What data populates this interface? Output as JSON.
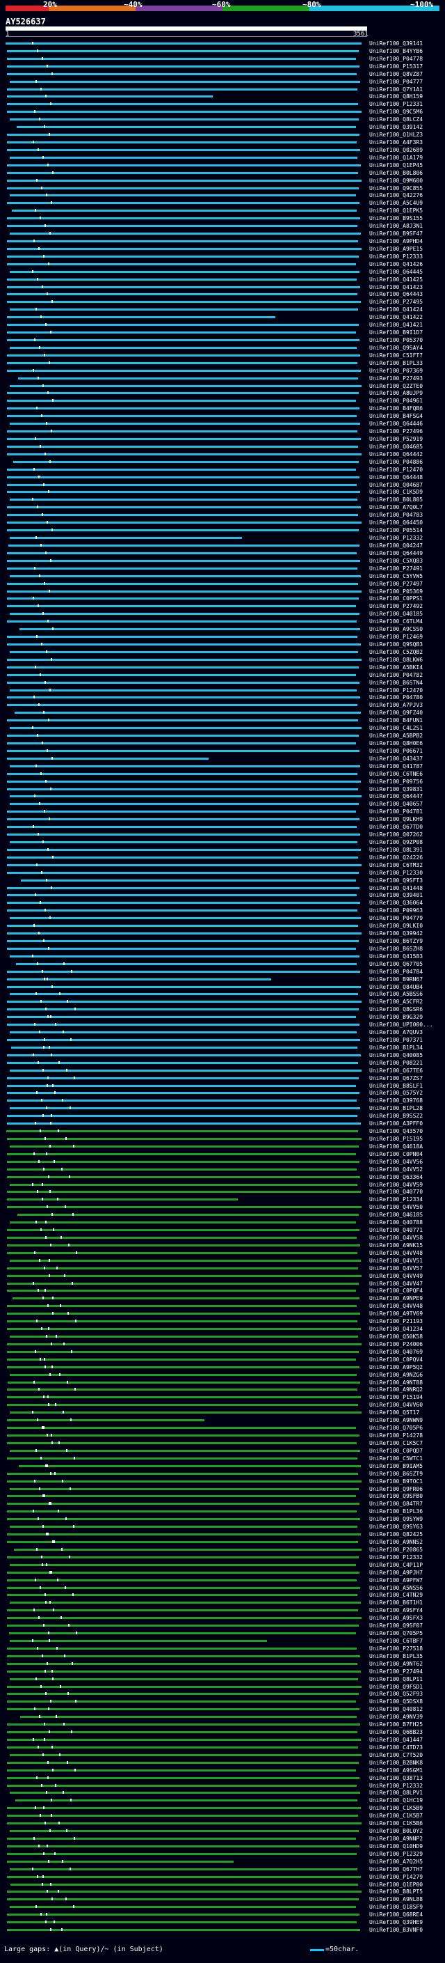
{
  "legend": {
    "labels": [
      "20%",
      "~40%",
      "~60%",
      "~80%",
      "~100%"
    ],
    "colors": [
      "#e0202a",
      "#e07020",
      "#8040a0",
      "#20a020",
      "#20c0e0"
    ]
  },
  "query": {
    "id": "AY526637",
    "start": "1",
    "end": "3561"
  },
  "hits": [
    {
      "name": "UniRef100_Q39141",
      "color": "#20c0e0"
    },
    {
      "name": "UniRef100_B4YYB6",
      "color": "#20c0e0"
    },
    {
      "name": "UniRef100_P04778",
      "color": "#20c0e0"
    },
    {
      "name": "UniRef100_P15317",
      "color": "#20c0e0"
    },
    {
      "name": "UniRef100_Q8VZ87",
      "color": "#20c0e0"
    },
    {
      "name": "UniRef100_P04777",
      "color": "#20c0e0"
    },
    {
      "name": "UniRef100_Q7Y1A1",
      "color": "#20c0e0"
    },
    {
      "name": "UniRef100_Q8H159",
      "color": "#20c0e0"
    },
    {
      "name": "UniRef100_P12331",
      "color": "#20c0e0"
    },
    {
      "name": "UniRef100_Q9C5M6",
      "color": "#20c0e0"
    },
    {
      "name": "UniRef100_Q8LCZ4",
      "color": "#20c0e0"
    },
    {
      "name": "UniRef100_Q39142",
      "color": "#20c0e0"
    },
    {
      "name": "UniRef100_Q1HLZ3",
      "color": "#20c0e0"
    },
    {
      "name": "UniRef100_A4F3R3",
      "color": "#20c0e0"
    },
    {
      "name": "UniRef100_Q02689",
      "color": "#20c0e0"
    },
    {
      "name": "UniRef100_Q1A179",
      "color": "#20c0e0"
    },
    {
      "name": "UniRef100_Q1EP45",
      "color": "#20c0e0"
    },
    {
      "name": "UniRef100_B0L806",
      "color": "#20c0e0"
    },
    {
      "name": "UniRef100_Q9M600",
      "color": "#20c0e0"
    },
    {
      "name": "UniRef100_Q9C855",
      "color": "#20c0e0"
    },
    {
      "name": "UniRef100_Q42276",
      "color": "#20c0e0"
    },
    {
      "name": "UniRef100_A5C4U9",
      "color": "#20c0e0"
    },
    {
      "name": "UniRef100_Q1EPK5",
      "color": "#20c0e0"
    },
    {
      "name": "UniRef100_B9S155",
      "color": "#20c0e0"
    },
    {
      "name": "UniRef100_A8J3N1",
      "color": "#20c0e0"
    },
    {
      "name": "UniRef100_B9SF47",
      "color": "#20c0e0"
    },
    {
      "name": "UniRef100_A9PHD4",
      "color": "#20c0e0"
    },
    {
      "name": "UniRef100_A9PE15",
      "color": "#20c0e0"
    },
    {
      "name": "UniRef100_P12333",
      "color": "#20c0e0"
    },
    {
      "name": "UniRef100_Q41426",
      "color": "#20c0e0"
    },
    {
      "name": "UniRef100_Q64445",
      "color": "#20c0e0"
    },
    {
      "name": "UniRef100_Q41425",
      "color": "#20c0e0"
    },
    {
      "name": "UniRef100_Q41423",
      "color": "#20c0e0"
    },
    {
      "name": "UniRef100_Q64443",
      "color": "#20c0e0"
    },
    {
      "name": "UniRef100_P27495",
      "color": "#20c0e0"
    },
    {
      "name": "UniRef100_Q41424",
      "color": "#20c0e0"
    },
    {
      "name": "UniRef100_Q41422",
      "color": "#20c0e0"
    },
    {
      "name": "UniRef100_Q41421",
      "color": "#20c0e0"
    },
    {
      "name": "UniRef100_B9I1D7",
      "color": "#20c0e0"
    },
    {
      "name": "UniRef100_P05370",
      "color": "#20c0e0"
    },
    {
      "name": "UniRef100_Q9SAY4",
      "color": "#20c0e0"
    },
    {
      "name": "UniRef100_C5IFT7",
      "color": "#20c0e0"
    },
    {
      "name": "UniRef100_B1PL33",
      "color": "#20c0e0"
    },
    {
      "name": "UniRef100_P07369",
      "color": "#20c0e0"
    },
    {
      "name": "UniRef100_P27493",
      "color": "#20c0e0"
    },
    {
      "name": "UniRef100_Q2ZTE0",
      "color": "#20c0e0"
    },
    {
      "name": "UniRef100_A8UJP9",
      "color": "#20c0e0"
    },
    {
      "name": "UniRef100_P04961",
      "color": "#20c0e0"
    },
    {
      "name": "UniRef100_B4FQB6",
      "color": "#20c0e0"
    },
    {
      "name": "UniRef100_B4FSG4",
      "color": "#20c0e0"
    },
    {
      "name": "UniRef100_Q64446",
      "color": "#20c0e0"
    },
    {
      "name": "UniRef100_P27496",
      "color": "#20c0e0"
    },
    {
      "name": "UniRef100_P52919",
      "color": "#20c0e0"
    },
    {
      "name": "UniRef100_Q04685",
      "color": "#20c0e0"
    },
    {
      "name": "UniRef100_Q64442",
      "color": "#20c0e0"
    },
    {
      "name": "UniRef100_P04886",
      "color": "#20c0e0"
    },
    {
      "name": "UniRef100_P12470",
      "color": "#20c0e0"
    },
    {
      "name": "UniRef100_Q64448",
      "color": "#20c0e0"
    },
    {
      "name": "UniRef100_Q04687",
      "color": "#20c0e0"
    },
    {
      "name": "UniRef100_C1K5D9",
      "color": "#20c0e0"
    },
    {
      "name": "UniRef100_B0L805",
      "color": "#20c0e0"
    },
    {
      "name": "UniRef100_A7Q0L7",
      "color": "#20c0e0"
    },
    {
      "name": "UniRef100_P04783",
      "color": "#20c0e0"
    },
    {
      "name": "UniRef100_Q64450",
      "color": "#20c0e0"
    },
    {
      "name": "UniRef100_P05514",
      "color": "#20c0e0"
    },
    {
      "name": "UniRef100_P12332",
      "color": "#20c0e0"
    },
    {
      "name": "UniRef100_Q04247",
      "color": "#20c0e0"
    },
    {
      "name": "UniRef100_Q64449",
      "color": "#20c0e0"
    },
    {
      "name": "UniRef100_C5XQ83",
      "color": "#20c0e0"
    },
    {
      "name": "UniRef100_P27491",
      "color": "#20c0e0"
    },
    {
      "name": "UniRef100_C5YVW5",
      "color": "#20c0e0"
    },
    {
      "name": "UniRef100_P27497",
      "color": "#20c0e0"
    },
    {
      "name": "UniRef100_P05369",
      "color": "#20c0e0"
    },
    {
      "name": "UniRef100_C0PPS1",
      "color": "#20c0e0"
    },
    {
      "name": "UniRef100_P27492",
      "color": "#20c0e0"
    },
    {
      "name": "UniRef100_Q40185",
      "color": "#20c0e0"
    },
    {
      "name": "UniRef100_C6TLM4",
      "color": "#20c0e0"
    },
    {
      "name": "UniRef100_A9CSS0",
      "color": "#20c0e0"
    },
    {
      "name": "UniRef100_P12469",
      "color": "#20c0e0"
    },
    {
      "name": "UniRef100_Q9SQB3",
      "color": "#20c0e0"
    },
    {
      "name": "UniRef100_C5ZQB2",
      "color": "#20c0e0"
    },
    {
      "name": "UniRef100_Q8LKW6",
      "color": "#20c0e0"
    },
    {
      "name": "UniRef100_A5BKI4",
      "color": "#20c0e0"
    },
    {
      "name": "UniRef100_P04782",
      "color": "#20c0e0"
    },
    {
      "name": "UniRef100_B6STN4",
      "color": "#20c0e0"
    },
    {
      "name": "UniRef100_P12470",
      "color": "#20c0e0"
    },
    {
      "name": "UniRef100_P04780",
      "color": "#20c0e0"
    },
    {
      "name": "UniRef100_A7PJV3",
      "color": "#20c0e0"
    },
    {
      "name": "UniRef100_Q9FZ40",
      "color": "#20c0e0"
    },
    {
      "name": "UniRef100_B4FUN1",
      "color": "#20c0e0"
    },
    {
      "name": "UniRef100_C4L2S1",
      "color": "#20c0e0"
    },
    {
      "name": "UniRef100_A5BPB2",
      "color": "#20c0e0"
    },
    {
      "name": "UniRef100_Q8H0E6",
      "color": "#20c0e0"
    },
    {
      "name": "UniRef100_P06671",
      "color": "#20c0e0"
    },
    {
      "name": "UniRef100_Q43437",
      "color": "#20c0e0"
    },
    {
      "name": "UniRef100_Q41787",
      "color": "#20c0e0"
    },
    {
      "name": "UniRef100_C6TNE6",
      "color": "#20c0e0"
    },
    {
      "name": "UniRef100_P09756",
      "color": "#20c0e0"
    },
    {
      "name": "UniRef100_Q39831",
      "color": "#20c0e0"
    },
    {
      "name": "UniRef100_Q64447",
      "color": "#20c0e0"
    },
    {
      "name": "UniRef100_Q40657",
      "color": "#20c0e0"
    },
    {
      "name": "UniRef100_P04781",
      "color": "#20c0e0"
    },
    {
      "name": "UniRef100_Q9LKH9",
      "color": "#20c0e0"
    },
    {
      "name": "UniRef100_Q67TD0",
      "color": "#20c0e0"
    },
    {
      "name": "UniRef100_Q07262",
      "color": "#20c0e0"
    },
    {
      "name": "UniRef100_Q9ZP08",
      "color": "#20c0e0"
    },
    {
      "name": "UniRef100_Q8L391",
      "color": "#20c0e0"
    },
    {
      "name": "UniRef100_Q24226",
      "color": "#20c0e0"
    },
    {
      "name": "UniRef100_C6TM32",
      "color": "#20c0e0"
    },
    {
      "name": "UniRef100_P12330",
      "color": "#20c0e0"
    },
    {
      "name": "UniRef100_Q9SFT3",
      "color": "#20c0e0"
    },
    {
      "name": "UniRef100_Q41448",
      "color": "#20c0e0"
    },
    {
      "name": "UniRef100_Q39401",
      "color": "#20c0e0"
    },
    {
      "name": "UniRef100_Q36064",
      "color": "#20c0e0"
    },
    {
      "name": "UniRef100_P09963",
      "color": "#20c0e0"
    },
    {
      "name": "UniRef100_P04779",
      "color": "#20c0e0"
    },
    {
      "name": "UniRef100_Q9LKI0",
      "color": "#20c0e0"
    },
    {
      "name": "UniRef100_Q39942",
      "color": "#20c0e0"
    },
    {
      "name": "UniRef100_B6TZY9",
      "color": "#20c0e0"
    },
    {
      "name": "UniRef100_B6SZH8",
      "color": "#20c0e0"
    },
    {
      "name": "UniRef100_Q41583",
      "color": "#20c0e0"
    },
    {
      "name": "UniRef100_Q67705",
      "color": "#20c0e0"
    },
    {
      "name": "UniRef100_P04784",
      "color": "#20c0e0"
    },
    {
      "name": "UniRef100_B9RN67",
      "color": "#20c0e0"
    },
    {
      "name": "UniRef100_Q84UB4",
      "color": "#20c0e0"
    },
    {
      "name": "UniRef100_A5BSS6",
      "color": "#20c0e0"
    },
    {
      "name": "UniRef100_A5CFR2",
      "color": "#20c0e0"
    },
    {
      "name": "UniRef100_Q8GSR6",
      "color": "#20c0e0"
    },
    {
      "name": "UniRef100_B9G329",
      "color": "#20c0e0"
    },
    {
      "name": "UniRef100_UPI000...",
      "color": "#20c0e0"
    },
    {
      "name": "UniRef100_A7QUV3",
      "color": "#20c0e0"
    },
    {
      "name": "UniRef100_P07371",
      "color": "#20c0e0"
    },
    {
      "name": "UniRef100_B1PL34",
      "color": "#20c0e0"
    },
    {
      "name": "UniRef100_Q40085",
      "color": "#20c0e0"
    },
    {
      "name": "UniRef100_P08221",
      "color": "#20c0e0"
    },
    {
      "name": "UniRef100_Q67TE6",
      "color": "#20c0e0"
    },
    {
      "name": "UniRef100_Q67ZS7",
      "color": "#20c0e0"
    },
    {
      "name": "UniRef100_B8SLF1",
      "color": "#20c0e0"
    },
    {
      "name": "UniRef100_Q575Y2",
      "color": "#20c0e0"
    },
    {
      "name": "UniRef100_Q39768",
      "color": "#20c0e0"
    },
    {
      "name": "UniRef100_B1PL28",
      "color": "#20c0e0"
    },
    {
      "name": "UniRef100_B9SSZ2",
      "color": "#20c0e0"
    },
    {
      "name": "UniRef100_A3PFF0",
      "color": "#20c0e0"
    },
    {
      "name": "UniRef100_Q43570",
      "color": "#20a020"
    },
    {
      "name": "UniRef100_P15195",
      "color": "#20a020"
    },
    {
      "name": "UniRef100_Q4618A",
      "color": "#20a020"
    },
    {
      "name": "UniRef100_C0PN04",
      "color": "#20a020"
    },
    {
      "name": "UniRef100_Q4VV56",
      "color": "#20a020"
    },
    {
      "name": "UniRef100_Q4VV52",
      "color": "#20a020"
    },
    {
      "name": "UniRef100_Q63364",
      "color": "#20a020"
    },
    {
      "name": "UniRef100_Q4VV59",
      "color": "#20a020"
    },
    {
      "name": "UniRef100_Q40770",
      "color": "#20a020"
    },
    {
      "name": "UniRef100_P12334",
      "color": "#20a020"
    },
    {
      "name": "UniRef100_Q4VV50",
      "color": "#20a020"
    },
    {
      "name": "UniRef100_Q4618S",
      "color": "#20a020"
    },
    {
      "name": "UniRef100_Q40788",
      "color": "#20a020"
    },
    {
      "name": "UniRef100_Q40771",
      "color": "#20a020"
    },
    {
      "name": "UniRef100_Q4VV58",
      "color": "#20a020"
    },
    {
      "name": "UniRef100_A9NK15",
      "color": "#20a020"
    },
    {
      "name": "UniRef100_Q4VV48",
      "color": "#20a020"
    },
    {
      "name": "UniRef100_Q4VV51",
      "color": "#20a020"
    },
    {
      "name": "UniRef100_Q4VV57",
      "color": "#20a020"
    },
    {
      "name": "UniRef100_Q4VV49",
      "color": "#20a020"
    },
    {
      "name": "UniRef100_Q4VV47",
      "color": "#20a020"
    },
    {
      "name": "UniRef100_C0PQF4",
      "color": "#20a020"
    },
    {
      "name": "UniRef100_A9NPE9",
      "color": "#20a020"
    },
    {
      "name": "UniRef100_Q4VV48",
      "color": "#20a020"
    },
    {
      "name": "UniRef100_A9TV69",
      "color": "#20a020"
    },
    {
      "name": "UniRef100_P21193",
      "color": "#20a020"
    },
    {
      "name": "UniRef100_Q41234",
      "color": "#20a020"
    },
    {
      "name": "UniRef100_Q50K58",
      "color": "#20a020"
    },
    {
      "name": "UniRef100_P24006",
      "color": "#20a020"
    },
    {
      "name": "UniRef100_Q40769",
      "color": "#20a020"
    },
    {
      "name": "UniRef100_C0PQV4",
      "color": "#20a020"
    },
    {
      "name": "UniRef100_A9P5Q2",
      "color": "#20a020"
    },
    {
      "name": "UniRef100_A9NZG6",
      "color": "#20a020"
    },
    {
      "name": "UniRef100_A9NT88",
      "color": "#20a020"
    },
    {
      "name": "UniRef100_A9NRQ2",
      "color": "#20a020"
    },
    {
      "name": "UniRef100_P15194",
      "color": "#20a020"
    },
    {
      "name": "UniRef100_Q4VV60",
      "color": "#20a020"
    },
    {
      "name": "UniRef100_Q5T17",
      "color": "#20a020"
    },
    {
      "name": "UniRef100_A9NWN9",
      "color": "#20a020"
    },
    {
      "name": "UniRef100_Q705P6",
      "color": "#20a020"
    },
    {
      "name": "UniRef100_P14278",
      "color": "#20a020"
    },
    {
      "name": "UniRef100_C1K5C7",
      "color": "#20a020"
    },
    {
      "name": "UniRef100_C0PQD7",
      "color": "#20a020"
    },
    {
      "name": "UniRef100_C5WTC1",
      "color": "#20a020"
    },
    {
      "name": "UniRef100_B9IAM5",
      "color": "#20a020"
    },
    {
      "name": "UniRef100_B6SZT9",
      "color": "#20a020"
    },
    {
      "name": "UniRef100_B9TOC1",
      "color": "#20a020"
    },
    {
      "name": "UniRef100_Q9FR06",
      "color": "#20a020"
    },
    {
      "name": "UniRef100_Q9SFB0",
      "color": "#20a020"
    },
    {
      "name": "UniRef100_Q84TR7",
      "color": "#20a020"
    },
    {
      "name": "UniRef100_B1PL36",
      "color": "#20a020"
    },
    {
      "name": "UniRef100_Q9SYW9",
      "color": "#20a020"
    },
    {
      "name": "UniRef100_Q9SY63",
      "color": "#20a020"
    },
    {
      "name": "UniRef100_Q82425",
      "color": "#20a020"
    },
    {
      "name": "UniRef100_A9NNS2",
      "color": "#20a020"
    },
    {
      "name": "UniRef100_P20865",
      "color": "#20a020"
    },
    {
      "name": "UniRef100_P12332",
      "color": "#20a020"
    },
    {
      "name": "UniRef100_C4P11P",
      "color": "#20a020"
    },
    {
      "name": "UniRef100_A9PJH7",
      "color": "#20a020"
    },
    {
      "name": "UniRef100_A9PFW7",
      "color": "#20a020"
    },
    {
      "name": "UniRef100_A5NS56",
      "color": "#20a020"
    },
    {
      "name": "UniRef100_C4TN29",
      "color": "#20a020"
    },
    {
      "name": "UniRef100_B6T1H1",
      "color": "#20a020"
    },
    {
      "name": "UniRef100_A9SFY4",
      "color": "#20a020"
    },
    {
      "name": "UniRef100_A9SFX3",
      "color": "#20a020"
    },
    {
      "name": "UniRef100_Q9SF07",
      "color": "#20a020"
    },
    {
      "name": "UniRef100_Q705P5",
      "color": "#20a020"
    },
    {
      "name": "UniRef100_C6TBF7",
      "color": "#20a020"
    },
    {
      "name": "UniRef100_P27518",
      "color": "#20a020"
    },
    {
      "name": "UniRef100_B1PL35",
      "color": "#20a020"
    },
    {
      "name": "UniRef100_A9NT62",
      "color": "#20a020"
    },
    {
      "name": "UniRef100_P27494",
      "color": "#20a020"
    },
    {
      "name": "UniRef100_Q8LP11",
      "color": "#20a020"
    },
    {
      "name": "UniRef100_Q9FSD1",
      "color": "#20a020"
    },
    {
      "name": "UniRef100_Q52F93",
      "color": "#20a020"
    },
    {
      "name": "UniRef100_Q5DSX8",
      "color": "#20a020"
    },
    {
      "name": "UniRef100_Q40812",
      "color": "#20a020"
    },
    {
      "name": "UniRef100_A9NV39",
      "color": "#20a020"
    },
    {
      "name": "UniRef100_B7FH25",
      "color": "#20a020"
    },
    {
      "name": "UniRef100_Q6BB23",
      "color": "#20a020"
    },
    {
      "name": "UniRef100_Q41447",
      "color": "#20a020"
    },
    {
      "name": "UniRef100_C4TD73",
      "color": "#20a020"
    },
    {
      "name": "UniRef100_C7T520",
      "color": "#20a020"
    },
    {
      "name": "UniRef100_B2BNK8",
      "color": "#20a020"
    },
    {
      "name": "UniRef100_A9SGM1",
      "color": "#20a020"
    },
    {
      "name": "UniRef100_Q38713",
      "color": "#20a020"
    },
    {
      "name": "UniRef100_P12332",
      "color": "#20a020"
    },
    {
      "name": "UniRef100_Q8LPV1",
      "color": "#20a020"
    },
    {
      "name": "UniRef100_Q1HC19",
      "color": "#20a020"
    },
    {
      "name": "UniRef100_C1K5B9",
      "color": "#20a020"
    },
    {
      "name": "UniRef100_C1K5B7",
      "color": "#20a020"
    },
    {
      "name": "UniRef100_C1K5B6",
      "color": "#20a020"
    },
    {
      "name": "UniRef100_B0L0Y2",
      "color": "#20a020"
    },
    {
      "name": "UniRef100_A9NNP2",
      "color": "#20a020"
    },
    {
      "name": "UniRef100_Q10HD9",
      "color": "#20a020"
    },
    {
      "name": "UniRef100_P12329",
      "color": "#20a020"
    },
    {
      "name": "UniRef100_A7Q2H5",
      "color": "#20a020"
    },
    {
      "name": "UniRef100_Q67TH7",
      "color": "#20a020"
    },
    {
      "name": "UniRef100_P14279",
      "color": "#20a020"
    },
    {
      "name": "UniRef100_Q1EP00",
      "color": "#20a020"
    },
    {
      "name": "UniRef100_B8LPT5",
      "color": "#20a020"
    },
    {
      "name": "UniRef100_A9NL88",
      "color": "#20a020"
    },
    {
      "name": "UniRef100_Q18SF9",
      "color": "#20a020"
    },
    {
      "name": "UniRef100_Q68RE4",
      "color": "#20a020"
    },
    {
      "name": "UniRef100_Q39HE9",
      "color": "#20a020"
    },
    {
      "name": "UniRef100_B3VNF0",
      "color": "#20a020"
    }
  ],
  "footer": {
    "gaps_text": "Large gaps: ▲(in Query)/~ (in Subject)",
    "scale_text": "=50char."
  }
}
